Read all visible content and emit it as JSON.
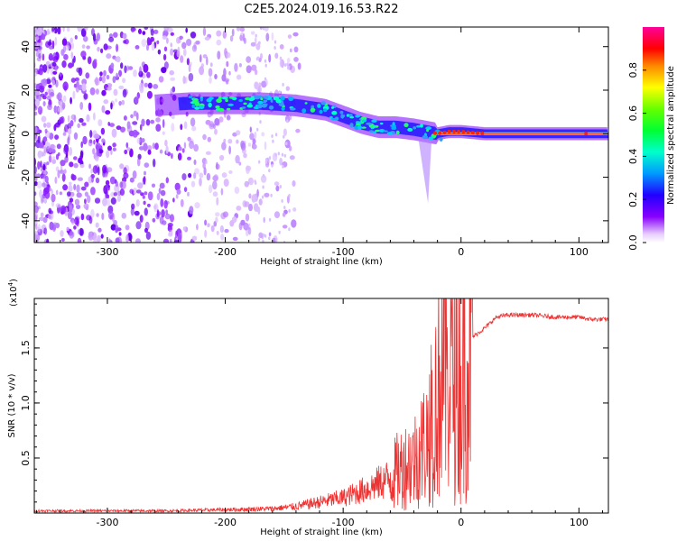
{
  "title": "C2E5.2024.019.16.53.R22",
  "chart_data": [
    {
      "type": "heatmap",
      "xlabel": "Height of straight line (km)",
      "ylabel": "Frequency (Hz)",
      "xlim": [
        -362,
        125
      ],
      "ylim": [
        -50,
        49
      ],
      "x_ticks": [
        -300,
        -200,
        -100,
        0,
        100
      ],
      "y_ticks": [
        -40,
        -20,
        0,
        20,
        40
      ],
      "colorbar": {
        "label": "Normalized spectral amplitude",
        "range": [
          0.0,
          1.0
        ],
        "ticks": [
          0.0,
          0.2,
          0.4,
          0.6,
          0.8
        ],
        "colormap": "rainbow"
      },
      "ridge": {
        "x": [
          -260,
          -230,
          -200,
          -170,
          -140,
          -115,
          -100,
          -85,
          -70,
          -55,
          -40,
          -30,
          -20,
          -10,
          0,
          20,
          60,
          100,
          125
        ],
        "y": [
          13,
          14,
          14,
          14,
          13,
          11,
          8,
          5,
          3,
          3,
          2,
          1,
          0,
          1,
          1,
          0,
          0,
          0,
          0
        ]
      }
    },
    {
      "type": "line",
      "xlabel": "Height of straight line (km)",
      "ylabel": "SNR (10 * v/v)",
      "y_multiplier_label": "(x10",
      "y_multiplier_exp": "4",
      "y_multiplier_close": ")",
      "xlim": [
        -362,
        125
      ],
      "ylim": [
        0,
        1.95
      ],
      "x_ticks": [
        -300,
        -200,
        -100,
        0,
        100
      ],
      "y_ticks": [
        0.5,
        1.0,
        1.5
      ],
      "color": "#ee3333",
      "series": [
        {
          "x": [
            -362,
            -300,
            -250,
            -200,
            -160,
            -140,
            -120,
            -100,
            -80,
            -60,
            -50,
            -40,
            -30,
            -25,
            -20,
            -15,
            -10,
            -5,
            0,
            5,
            10,
            20,
            30,
            40,
            60,
            80,
            100,
            110,
            125
          ],
          "values": [
            0.02,
            0.02,
            0.02,
            0.03,
            0.04,
            0.06,
            0.1,
            0.14,
            0.22,
            0.32,
            0.42,
            0.48,
            0.65,
            0.8,
            1.1,
            1.4,
            1.25,
            1.3,
            1.25,
            1.45,
            1.6,
            1.68,
            1.78,
            1.8,
            1.8,
            1.78,
            1.78,
            1.76,
            1.76
          ]
        }
      ]
    }
  ]
}
